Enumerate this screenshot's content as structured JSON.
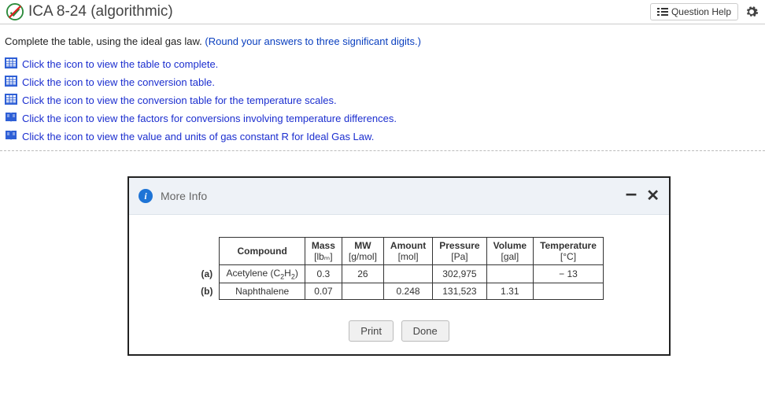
{
  "header": {
    "title": "ICA 8-24 (algorithmic)",
    "question_help": "Question Help"
  },
  "instruction": {
    "main": "Complete the table, using the ideal gas law. ",
    "hint": "(Round your answers to three significant digits.)"
  },
  "refs": [
    {
      "icon": "table",
      "label": "Click the icon to view the table to complete."
    },
    {
      "icon": "table",
      "label": "Click the icon to view the conversion table."
    },
    {
      "icon": "table",
      "label": "Click the icon to view the conversion table for the temperature scales."
    },
    {
      "icon": "book",
      "label": "Click the icon to view the factors for conversions involving temperature differences."
    },
    {
      "icon": "book",
      "label": "Click the icon to view the value and units of gas constant R for Ideal Gas Law."
    }
  ],
  "modal": {
    "title": "More Info",
    "buttons": {
      "print": "Print",
      "done": "Done"
    },
    "table": {
      "columns": [
        {
          "head": "Compound",
          "unit": ""
        },
        {
          "head": "Mass",
          "unit": "[lbₘ]"
        },
        {
          "head": "MW",
          "unit": "[g/mol]"
        },
        {
          "head": "Amount",
          "unit": "[mol]"
        },
        {
          "head": "Pressure",
          "unit": "[Pa]"
        },
        {
          "head": "Volume",
          "unit": "[gal]"
        },
        {
          "head": "Temperature",
          "unit": "[°C]"
        }
      ],
      "rows": [
        {
          "label": "(a)",
          "compound_html": "Acetylene (C<sub>2</sub>H<sub>2</sub>)",
          "mass": "0.3",
          "mw": "26",
          "amount": "",
          "pressure": "302,975",
          "volume": "",
          "temp": "− 13"
        },
        {
          "label": "(b)",
          "compound_html": "Naphthalene",
          "mass": "0.07",
          "mw": "",
          "amount": "0.248",
          "pressure": "131,523",
          "volume": "1.31",
          "temp": ""
        }
      ]
    }
  },
  "colors": {
    "link": "#1b2ecf",
    "info_badge": "#1e74d6",
    "modal_head_bg": "#eef2f7"
  }
}
